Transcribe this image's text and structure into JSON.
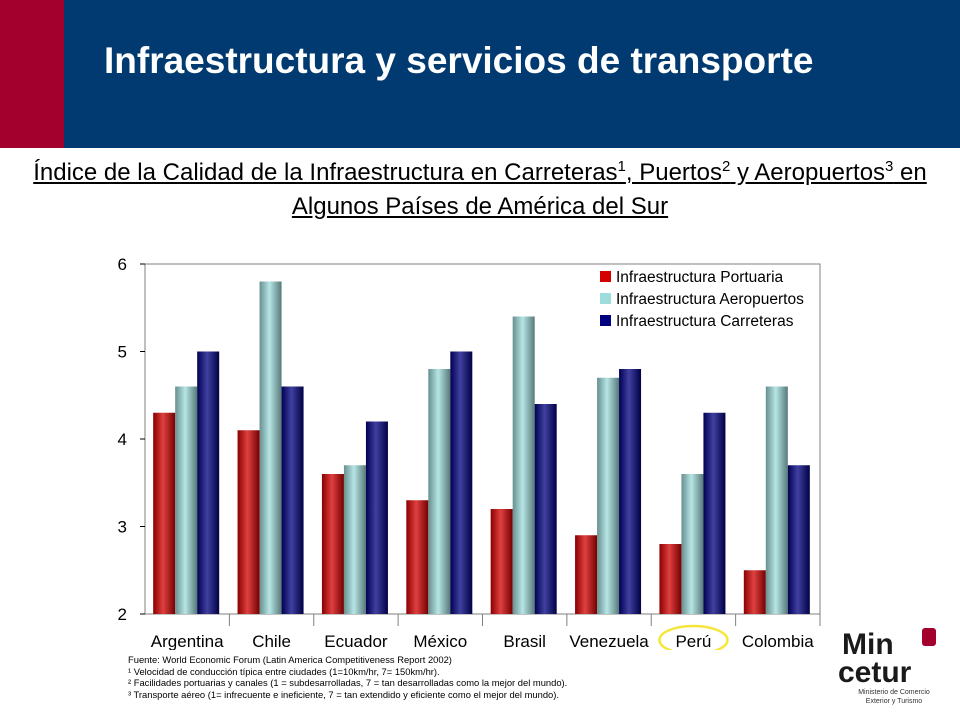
{
  "header": {
    "title": "Infraestructura y servicios de transporte",
    "bar_color": "#003a70",
    "accent_color": "#a3002e"
  },
  "subtitle": {
    "part1": "Índice de la Calidad de la Infraestructura en Carreteras",
    "sup1": "1",
    "part2": ", Puertos",
    "sup2": "2",
    "part3": " y Aeropuertos",
    "sup3": "3",
    "part4": " en Algunos Países de América del Sur"
  },
  "chart_data": {
    "type": "bar",
    "categories": [
      "Argentina",
      "Chile",
      "Ecuador",
      "México",
      "Brasil",
      "Venezuela",
      "Perú",
      "Colombia"
    ],
    "series": [
      {
        "name": "Infraestructura Portuaria",
        "color": "#d40000",
        "values": [
          4.3,
          4.1,
          3.6,
          3.3,
          3.2,
          2.9,
          2.8,
          2.5
        ]
      },
      {
        "name": "Infraestructura Aeropuertos",
        "color": "#9fdcdc",
        "values": [
          4.6,
          5.8,
          3.7,
          4.8,
          5.4,
          4.7,
          3.6,
          4.6
        ]
      },
      {
        "name": "Infraestructura Carreteras",
        "color": "#000080",
        "values": [
          5.0,
          4.6,
          4.2,
          5.0,
          4.4,
          4.8,
          4.3,
          3.7
        ]
      }
    ],
    "ylim": [
      2,
      6
    ],
    "yticks": [
      "2",
      "3",
      "4",
      "5",
      "6"
    ],
    "legend_position": "top-right",
    "highlight_category": "Perú",
    "highlight_color": "#f5e63c",
    "grid": false
  },
  "notes": {
    "source": "Fuente: World Economic Forum (Latin America Competitiveness Report 2002)",
    "n1": "¹ Velocidad de conducción típica entre ciudades (1=10km/hr, 7= 150km/hr).",
    "n2": "² Facilidades portuarias y canales (1 = subdesarrolladas, 7 = tan desarrolladas como la mejor del mundo).",
    "n3": "³ Transporte aéreo (1= infrecuente e ineficiente, 7 = tan extendido y eficiente como el mejor del mundo)."
  },
  "logo": {
    "line1": "Min",
    "line2": "cetur",
    "caption1": "Ministerio de Comercio",
    "caption2": "Exterior y Turismo",
    "color": "#a3002e"
  }
}
